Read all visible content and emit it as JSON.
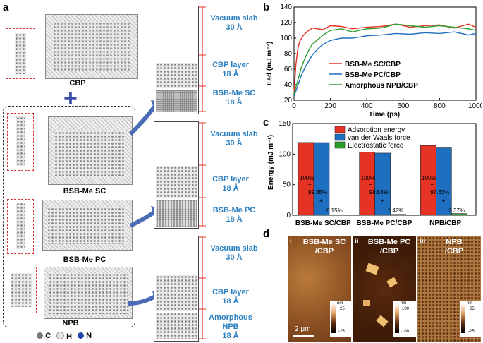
{
  "panels": {
    "a": "a",
    "b": "b",
    "c": "c",
    "d": "d"
  },
  "panel_a": {
    "molecules": [
      {
        "name": "CBP"
      },
      {
        "name": "BSB-Me SC"
      },
      {
        "name": "BSB-Me PC"
      },
      {
        "name": "NPB"
      }
    ],
    "slabs": [
      {
        "vacuum": "Vacuum slab",
        "vacuum_size": "30 Å",
        "cbp": "CBP layer",
        "cbp_size": "18 Å",
        "sub": "BSB-Me SC",
        "sub_size": "18 Å"
      },
      {
        "vacuum": "Vacuum slab",
        "vacuum_size": "30 Å",
        "cbp": "CBP layer",
        "cbp_size": "18 Å",
        "sub": "BSB-Me PC",
        "sub_size": "18 Å"
      },
      {
        "vacuum": "Vacuum slab",
        "vacuum_size": "30 Å",
        "cbp": "CBP layer",
        "cbp_size": "18 Å",
        "sub": "Amorphous NPB",
        "sub_size": "18 Å"
      }
    ],
    "atom_legend": [
      {
        "symbol": "C",
        "color": "#777777"
      },
      {
        "symbol": "H",
        "color": "#e6e6e6"
      },
      {
        "symbol": "N",
        "color": "#2244aa"
      }
    ],
    "plus": "+"
  },
  "chart_data": [
    {
      "type": "line",
      "xlabel": "Time (ps)",
      "ylabel": "Ead (mJ m⁻²)",
      "xlim": [
        0,
        1000
      ],
      "ylim": [
        20,
        140
      ],
      "xticks": [
        0,
        200,
        400,
        600,
        800,
        1000
      ],
      "yticks": [
        20,
        40,
        60,
        80,
        100,
        120,
        140
      ],
      "series": [
        {
          "name": "BSB-Me SC/CBP",
          "color": "#e53325",
          "x": [
            0,
            10,
            20,
            30,
            50,
            70,
            100,
            130,
            160,
            200,
            260,
            320,
            400,
            480,
            560,
            640,
            720,
            800,
            880,
            960,
            1000
          ],
          "y": [
            28,
            65,
            85,
            95,
            103,
            108,
            113,
            112,
            111,
            116,
            115,
            112,
            114,
            115,
            118,
            114,
            116,
            117,
            113,
            118,
            114
          ]
        },
        {
          "name": "BSB-Me PC/CBP",
          "color": "#1f6fc1",
          "x": [
            0,
            20,
            40,
            60,
            80,
            100,
            130,
            160,
            200,
            260,
            320,
            400,
            480,
            560,
            640,
            720,
            800,
            880,
            960,
            1000
          ],
          "y": [
            25,
            38,
            52,
            62,
            70,
            78,
            86,
            92,
            97,
            100,
            100,
            103,
            104,
            106,
            105,
            107,
            106,
            108,
            104,
            106
          ]
        },
        {
          "name": "Amorphous NPB/CBP",
          "color": "#2a9d2a",
          "x": [
            0,
            20,
            40,
            60,
            80,
            100,
            130,
            160,
            200,
            260,
            320,
            400,
            480,
            560,
            640,
            720,
            800,
            880,
            960,
            1000
          ],
          "y": [
            28,
            45,
            62,
            74,
            84,
            92,
            98,
            104,
            110,
            112,
            108,
            112,
            113,
            118,
            116,
            114,
            116,
            114,
            112,
            110
          ]
        }
      ]
    },
    {
      "type": "bar",
      "ylabel": "Energy (mJ m⁻²)",
      "ylim": [
        0,
        150
      ],
      "yticks": [
        0,
        50,
        100,
        150
      ],
      "categories": [
        "BSB-Me SC/CBP",
        "BSB-Me PC/CBP",
        "NPB/CBP"
      ],
      "series": [
        {
          "name": "Adsorption energy",
          "color": "#e53325",
          "values": [
            119,
            103,
            114
          ]
        },
        {
          "name": "van der Waals force",
          "color": "#1f6fc1",
          "values": [
            118.8,
            101.6,
            111.3
          ]
        },
        {
          "name": "Electrostatic force",
          "color": "#2a9d2a",
          "values": [
            0.2,
            1.4,
            2.7
          ]
        }
      ],
      "annotations": [
        {
          "total": "100%",
          "eq": "=",
          "vdw": "99.85%",
          "plus": "+",
          "es": "0.15%"
        },
        {
          "total": "100%",
          "eq": "=",
          "vdw": "98.58%",
          "plus": "+",
          "es": "1.42%"
        },
        {
          "total": "100%",
          "eq": "=",
          "vdw": "97.63%",
          "plus": "+",
          "es": "2.37%"
        }
      ]
    }
  ],
  "panel_d": {
    "images": [
      {
        "index": "i",
        "title1": "BSB-Me SC",
        "title2": "/CBP",
        "scale_unit": "nm",
        "scale_max": "25",
        "scale_min": "-25"
      },
      {
        "index": "ii",
        "title1": "BSB-Me PC",
        "title2": "/CBP",
        "scale_unit": "nm",
        "scale_max": "100",
        "scale_min": "-100"
      },
      {
        "index": "iii",
        "title1": "NPB",
        "title2": "/CBP",
        "scale_unit": "nm",
        "scale_max": "25",
        "scale_min": "-25"
      }
    ],
    "scale_bar": "2 μm"
  }
}
